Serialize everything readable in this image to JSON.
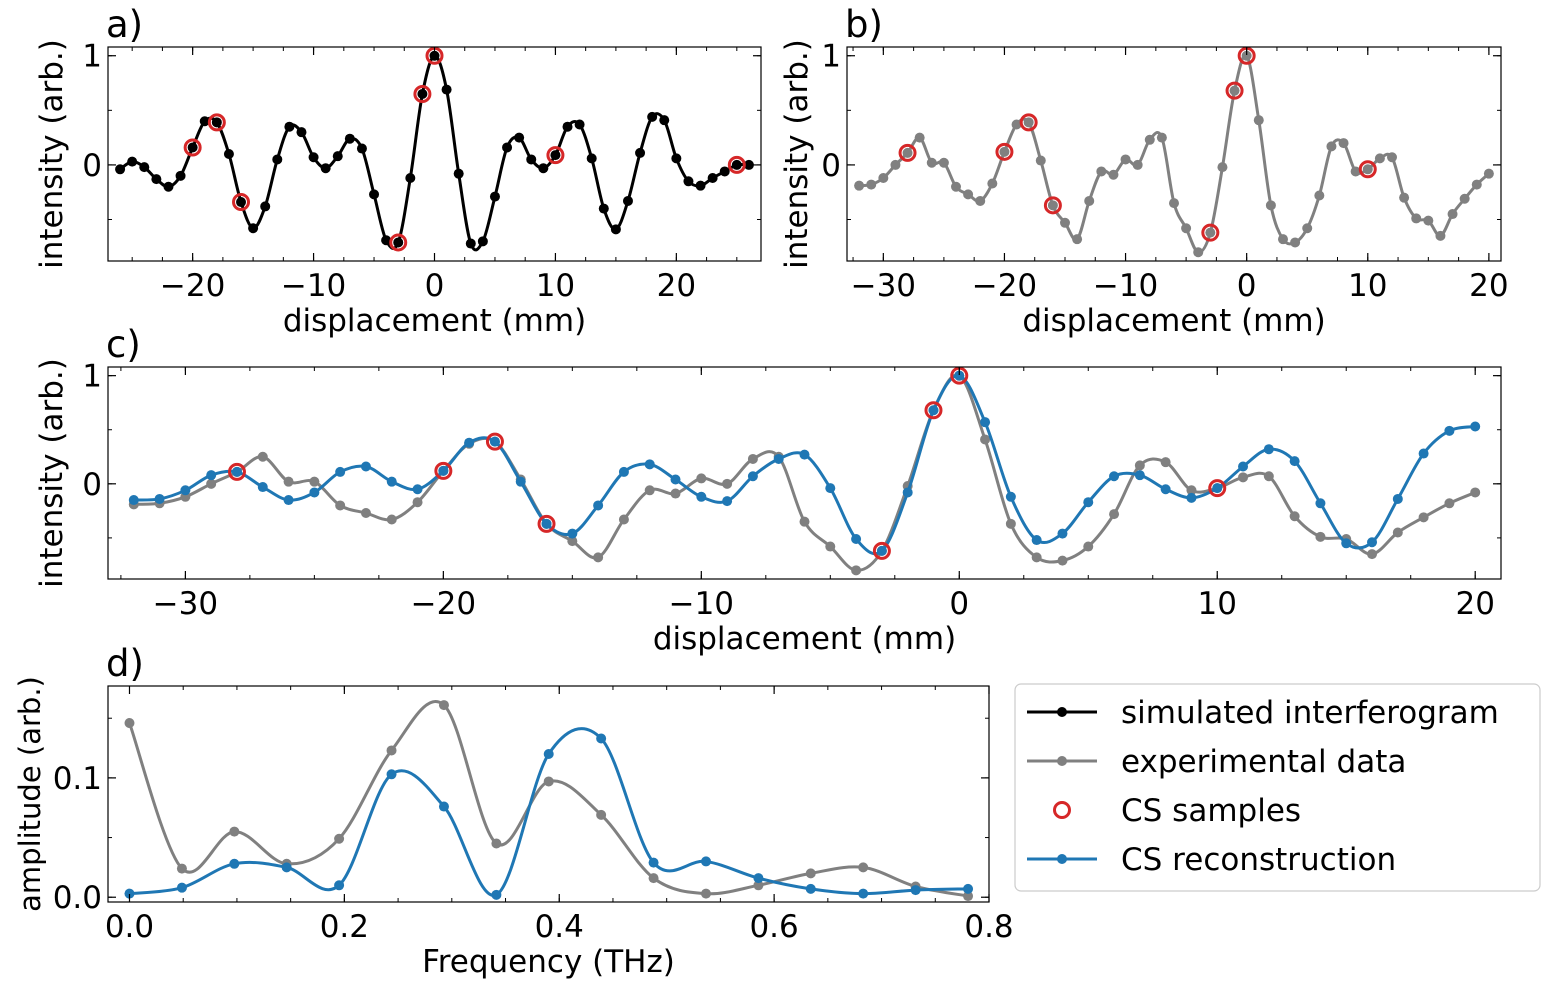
{
  "colors": {
    "simulated": "#000000",
    "experimental": "#808080",
    "cs_reconstruction": "#1f77b4",
    "cs_samples": "#d62728"
  },
  "legend": {
    "placement": "right of panel d",
    "entries": [
      {
        "label": "simulated interferogram",
        "style": "line-marker",
        "color": "#000000"
      },
      {
        "label": "experimental data",
        "style": "line-marker",
        "color": "#808080"
      },
      {
        "label": "CS samples",
        "style": "open-circle",
        "color": "#d62728"
      },
      {
        "label": "CS reconstruction",
        "style": "line-marker",
        "color": "#1f77b4"
      }
    ]
  },
  "chart_data": [
    {
      "panel_label": "a)",
      "type": "line",
      "xlabel": "displacement (mm)",
      "ylabel": "intensity (arb.)",
      "xlim": [
        -27,
        27
      ],
      "ylim": [
        -0.88,
        1.08
      ],
      "xticks": [
        -20,
        -10,
        0,
        10,
        20
      ],
      "xtick_labels": [
        "−20",
        "−10",
        "0",
        "10",
        "20"
      ],
      "yticks": [
        0,
        1
      ],
      "ytick_labels": [
        "0",
        "1"
      ],
      "series": [
        {
          "name": "simulated interferogram",
          "color": "#000000",
          "x": [
            -26,
            -25,
            -24,
            -23,
            -22,
            -21,
            -20,
            -19,
            -18,
            -17,
            -16,
            -15,
            -14,
            -13,
            -12,
            -11,
            -10,
            -9,
            -8,
            -7,
            -6,
            -5,
            -4,
            -3,
            -2,
            -1,
            0,
            1,
            2,
            3,
            4,
            5,
            6,
            7,
            8,
            9,
            10,
            11,
            12,
            13,
            14,
            15,
            16,
            17,
            18,
            19,
            20,
            21,
            22,
            23,
            24,
            25,
            26
          ],
          "y": [
            -0.04,
            0.03,
            -0.02,
            -0.13,
            -0.2,
            -0.1,
            0.16,
            0.4,
            0.39,
            0.1,
            -0.34,
            -0.58,
            -0.38,
            0.05,
            0.35,
            0.3,
            0.07,
            -0.03,
            0.08,
            0.24,
            0.15,
            -0.27,
            -0.69,
            -0.71,
            -0.12,
            0.65,
            1.0,
            0.69,
            -0.08,
            -0.72,
            -0.7,
            -0.29,
            0.16,
            0.25,
            0.05,
            -0.03,
            0.09,
            0.35,
            0.37,
            0.06,
            -0.4,
            -0.59,
            -0.33,
            0.11,
            0.44,
            0.41,
            0.06,
            -0.15,
            -0.19,
            -0.12,
            -0.06,
            0.0,
            0.0
          ]
        }
      ],
      "cs_samples": {
        "x": [
          -20,
          -18,
          -16,
          -3,
          0,
          -1,
          10,
          25
        ],
        "y": [
          0.16,
          0.39,
          -0.34,
          -0.71,
          1.0,
          0.65,
          0.09,
          0.0
        ]
      }
    },
    {
      "panel_label": "b)",
      "type": "line",
      "xlabel": "displacement (mm)",
      "ylabel": "intensity (arb.)",
      "xlim": [
        -33,
        21
      ],
      "ylim": [
        -0.88,
        1.08
      ],
      "xticks": [
        -30,
        -20,
        -10,
        0,
        10,
        20
      ],
      "xtick_labels": [
        "−30",
        "−20",
        "−10",
        "0",
        "10",
        "20"
      ],
      "yticks": [
        0,
        1
      ],
      "ytick_labels": [
        "0",
        "1"
      ],
      "series": [
        {
          "name": "experimental data",
          "color": "#808080",
          "x": [
            -32,
            -31,
            -30,
            -29,
            -28,
            -27,
            -26,
            -25,
            -24,
            -23,
            -22,
            -21,
            -20,
            -19,
            -18,
            -17,
            -16,
            -15,
            -14,
            -13,
            -12,
            -11,
            -10,
            -9,
            -8,
            -7,
            -6,
            -5,
            -4,
            -3,
            -2,
            -1,
            0,
            1,
            2,
            3,
            4,
            5,
            6,
            7,
            8,
            9,
            10,
            11,
            12,
            13,
            14,
            15,
            16,
            17,
            18,
            19,
            20
          ],
          "y": [
            -0.19,
            -0.18,
            -0.12,
            0.0,
            0.11,
            0.25,
            0.02,
            0.02,
            -0.2,
            -0.27,
            -0.33,
            -0.17,
            0.12,
            0.37,
            0.39,
            0.04,
            -0.37,
            -0.53,
            -0.68,
            -0.33,
            -0.06,
            -0.09,
            0.05,
            0.0,
            0.23,
            0.25,
            -0.35,
            -0.58,
            -0.8,
            -0.62,
            -0.02,
            0.68,
            1.0,
            0.41,
            -0.37,
            -0.68,
            -0.71,
            -0.58,
            -0.28,
            0.17,
            0.2,
            -0.06,
            -0.04,
            0.06,
            0.07,
            -0.3,
            -0.49,
            -0.51,
            -0.65,
            -0.45,
            -0.31,
            -0.18,
            -0.08
          ]
        }
      ],
      "cs_samples": {
        "x": [
          -28,
          -20,
          -18,
          -16,
          -3,
          -1,
          0,
          10
        ],
        "y": [
          0.11,
          0.12,
          0.39,
          -0.37,
          -0.62,
          0.68,
          1.0,
          -0.04
        ]
      }
    },
    {
      "panel_label": "c)",
      "type": "line",
      "xlabel": "displacement (mm)",
      "ylabel": "intensity (arb.)",
      "xlim": [
        -33,
        21
      ],
      "ylim": [
        -0.88,
        1.08
      ],
      "xticks": [
        -30,
        -20,
        -10,
        0,
        10,
        20
      ],
      "xtick_labels": [
        "−30",
        "−20",
        "−10",
        "0",
        "10",
        "20"
      ],
      "yticks": [
        0,
        1
      ],
      "ytick_labels": [
        "0",
        "1"
      ],
      "series": [
        {
          "name": "experimental data",
          "color": "#808080",
          "x": [
            -32,
            -31,
            -30,
            -29,
            -28,
            -27,
            -26,
            -25,
            -24,
            -23,
            -22,
            -21,
            -20,
            -19,
            -18,
            -17,
            -16,
            -15,
            -14,
            -13,
            -12,
            -11,
            -10,
            -9,
            -8,
            -7,
            -6,
            -5,
            -4,
            -3,
            -2,
            -1,
            0,
            1,
            2,
            3,
            4,
            5,
            6,
            7,
            8,
            9,
            10,
            11,
            12,
            13,
            14,
            15,
            16,
            17,
            18,
            19,
            20
          ],
          "y": [
            -0.19,
            -0.18,
            -0.12,
            0.0,
            0.11,
            0.25,
            0.02,
            0.02,
            -0.2,
            -0.27,
            -0.33,
            -0.17,
            0.12,
            0.37,
            0.39,
            0.04,
            -0.37,
            -0.53,
            -0.68,
            -0.33,
            -0.06,
            -0.09,
            0.05,
            0.0,
            0.23,
            0.25,
            -0.35,
            -0.58,
            -0.8,
            -0.62,
            -0.02,
            0.68,
            1.0,
            0.41,
            -0.37,
            -0.68,
            -0.71,
            -0.58,
            -0.28,
            0.17,
            0.2,
            -0.06,
            -0.04,
            0.06,
            0.07,
            -0.3,
            -0.49,
            -0.51,
            -0.65,
            -0.45,
            -0.31,
            -0.18,
            -0.08
          ]
        },
        {
          "name": "CS reconstruction",
          "color": "#1f77b4",
          "x": [
            -32,
            -31,
            -30,
            -29,
            -28,
            -27,
            -26,
            -25,
            -24,
            -23,
            -22,
            -21,
            -20,
            -19,
            -18,
            -17,
            -16,
            -15,
            -14,
            -13,
            -12,
            -11,
            -10,
            -9,
            -8,
            -7,
            -6,
            -5,
            -4,
            -3,
            -2,
            -1,
            0,
            1,
            2,
            3,
            4,
            5,
            6,
            7,
            8,
            9,
            10,
            11,
            12,
            13,
            14,
            15,
            16,
            17,
            18,
            19,
            20
          ],
          "y": [
            -0.15,
            -0.14,
            -0.06,
            0.08,
            0.11,
            -0.03,
            -0.15,
            -0.08,
            0.11,
            0.16,
            0.02,
            -0.05,
            0.12,
            0.38,
            0.39,
            0.02,
            -0.37,
            -0.46,
            -0.2,
            0.11,
            0.18,
            0.04,
            -0.12,
            -0.16,
            0.07,
            0.23,
            0.27,
            -0.04,
            -0.51,
            -0.62,
            -0.08,
            0.68,
            1.0,
            0.57,
            -0.12,
            -0.52,
            -0.46,
            -0.17,
            0.07,
            0.08,
            -0.05,
            -0.13,
            -0.04,
            0.16,
            0.32,
            0.21,
            -0.18,
            -0.55,
            -0.54,
            -0.14,
            0.28,
            0.49,
            0.53
          ]
        }
      ],
      "cs_samples": {
        "x": [
          -28,
          -20,
          -18,
          -16,
          -3,
          -1,
          0,
          10
        ],
        "y": [
          0.11,
          0.12,
          0.39,
          -0.37,
          -0.62,
          0.68,
          1.0,
          -0.04
        ]
      }
    },
    {
      "panel_label": "d)",
      "type": "line",
      "xlabel": "Frequency (THz)",
      "ylabel": "amplitude (arb.)",
      "xlim": [
        -0.02,
        0.8
      ],
      "ylim": [
        -0.004,
        0.177
      ],
      "xticks": [
        0.0,
        0.2,
        0.4,
        0.6,
        0.8
      ],
      "xtick_labels": [
        "0.0",
        "0.2",
        "0.4",
        "0.6",
        "0.8"
      ],
      "yticks": [
        0.0,
        0.1
      ],
      "ytick_labels": [
        "0.0",
        "0.1"
      ],
      "series": [
        {
          "name": "experimental data",
          "color": "#808080",
          "x": [
            0.0,
            0.0488,
            0.0976,
            0.1463,
            0.1951,
            0.2439,
            0.2927,
            0.3415,
            0.3902,
            0.439,
            0.4878,
            0.5366,
            0.5854,
            0.6341,
            0.6829,
            0.7317,
            0.7805
          ],
          "y": [
            0.146,
            0.024,
            0.055,
            0.028,
            0.049,
            0.123,
            0.161,
            0.045,
            0.097,
            0.069,
            0.016,
            0.003,
            0.01,
            0.02,
            0.025,
            0.009,
            0.001
          ]
        },
        {
          "name": "CS reconstruction",
          "color": "#1f77b4",
          "x": [
            0.0,
            0.0488,
            0.0976,
            0.1463,
            0.1951,
            0.2439,
            0.2927,
            0.3415,
            0.3902,
            0.439,
            0.4878,
            0.5366,
            0.5854,
            0.6341,
            0.6829,
            0.7317,
            0.7805
          ],
          "y": [
            0.003,
            0.008,
            0.028,
            0.025,
            0.01,
            0.103,
            0.076,
            0.002,
            0.12,
            0.133,
            0.029,
            0.03,
            0.016,
            0.007,
            0.003,
            0.006,
            0.007
          ]
        }
      ]
    }
  ]
}
